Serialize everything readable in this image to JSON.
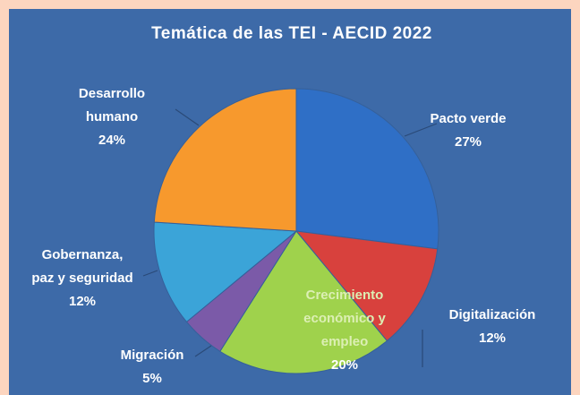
{
  "chart_data": {
    "type": "pie",
    "title": "Temática de las TEI - AECID 2022",
    "categories": [
      "Pacto verde",
      "Digitalización",
      "Crecimiento económico y empleo",
      "Migración",
      "Gobernanza, paz y seguridad",
      "Desarrollo humano"
    ],
    "values": [
      27,
      12,
      20,
      5,
      12,
      24
    ],
    "value_labels": [
      "27%",
      "12%",
      "20%",
      "5%",
      "12%",
      "24%"
    ],
    "colors": [
      "#2f6fc6",
      "#d8413d",
      "#9fd24c",
      "#7b5aa8",
      "#3ba4d8",
      "#f7992d"
    ]
  }
}
